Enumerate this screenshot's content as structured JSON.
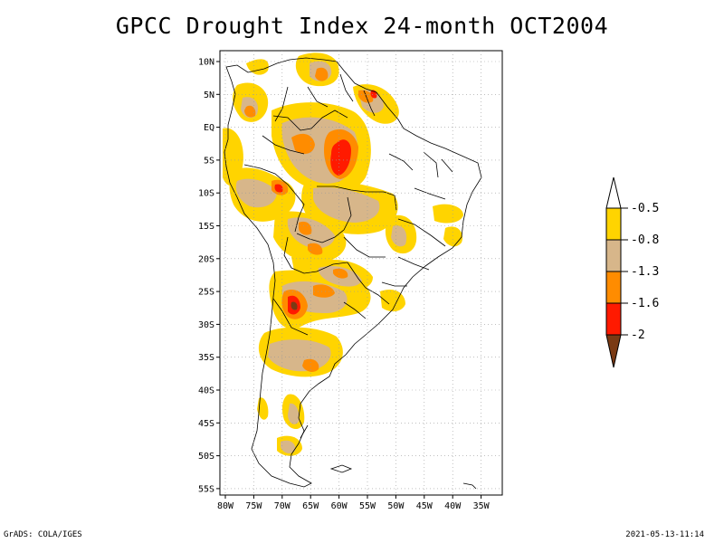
{
  "title": "GPCC Drought Index 24-month OCT2004",
  "axes": {
    "lat_labels": [
      "10N",
      "5N",
      "EQ",
      "5S",
      "10S",
      "15S",
      "20S",
      "25S",
      "30S",
      "35S",
      "40S",
      "45S",
      "50S",
      "55S"
    ],
    "lon_labels": [
      "80W",
      "75W",
      "70W",
      "65W",
      "60W",
      "55W",
      "50W",
      "45W",
      "40W",
      "35W"
    ]
  },
  "colorbar": {
    "labels": [
      "-0.5",
      "-0.8",
      "-1.3",
      "-1.6",
      "-2"
    ],
    "colors": [
      "#ffd400",
      "#d7b68a",
      "#ff8c00",
      "#ff1a00",
      "#7a3a14"
    ]
  },
  "drought_colors": {
    "mild": "#ffd400",
    "moderate": "#d7b68a",
    "severe": "#ff8c00",
    "extreme": "#ff1a00",
    "exceptional": "#7a3a14"
  },
  "footer": {
    "left": "GrADS: COLA/IGES",
    "right": "2021-05-13-11:14"
  }
}
